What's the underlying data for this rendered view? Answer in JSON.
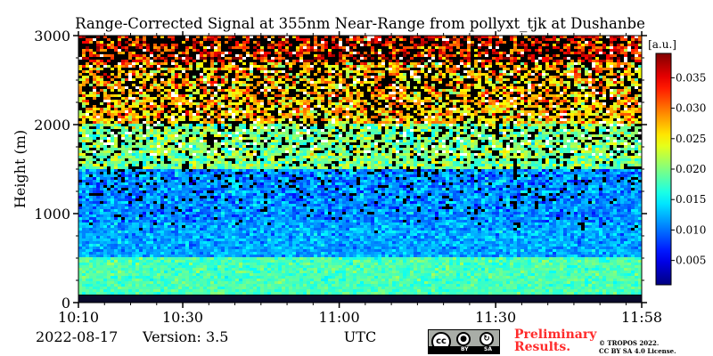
{
  "chart_data": {
    "type": "heatmap",
    "title": "Range-Corrected Signal at 355nm Near-Range from pollyxt_tjk at Dushanbe",
    "xlabel": "UTC",
    "ylabel": "Height (m)",
    "x_ticks": [
      "10:10",
      "10:30",
      "11:00",
      "11:30",
      "11:58"
    ],
    "x_range": [
      "10:10",
      "11:58"
    ],
    "y_ticks": [
      0,
      1000,
      2000,
      3000
    ],
    "ylim": [
      0,
      3000
    ],
    "colorbar": {
      "label": "[a.u.]",
      "ticks": [
        0.005,
        0.01,
        0.015,
        0.02,
        0.025,
        0.03,
        0.035
      ],
      "tick_labels": [
        "0.005",
        "0.010",
        "0.015",
        "0.020",
        "0.025",
        "0.030",
        "0.035"
      ],
      "range": [
        0.001,
        0.039
      ],
      "colormap": "jet"
    },
    "profile_bands": [
      {
        "height_range": [
          0,
          80
        ],
        "signal": "no data (dark)"
      },
      {
        "height_range": [
          80,
          500
        ],
        "signal": 0.018
      },
      {
        "height_range": [
          500,
          900
        ],
        "signal": 0.012
      },
      {
        "height_range": [
          900,
          1500
        ],
        "signal": 0.011
      },
      {
        "height_range": [
          1500,
          2000
        ],
        "signal": 0.02
      },
      {
        "height_range": [
          2000,
          2700
        ],
        "signal": 0.027
      },
      {
        "height_range": [
          2700,
          3000
        ],
        "signal": 0.033
      }
    ]
  },
  "footer": {
    "date": "2022-08-17",
    "version": "Version: 3.5",
    "preliminary_line1": "Preliminary",
    "preliminary_line2": "Results.",
    "copyright_line1": "© TROPOS 2022.",
    "copyright_line2": "CC BY SA 4.0 License.",
    "license_badge": {
      "by": "BY",
      "sa": "SA",
      "cc": "cc"
    }
  },
  "colors": {
    "preliminary_text": "#ff2b2b",
    "background": "#000000"
  }
}
